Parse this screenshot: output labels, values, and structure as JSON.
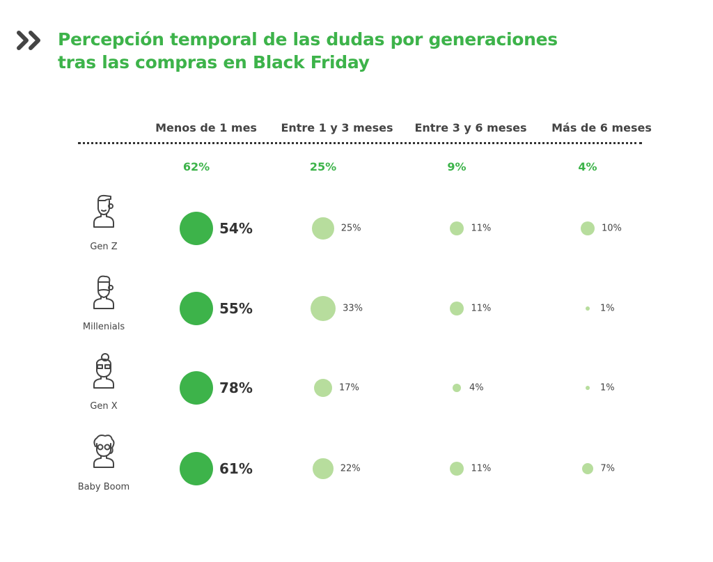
{
  "title_line1": "Percepción temporal de las dudas por generaciones",
  "title_line2": "tras las compras en Black Friday",
  "colors": {
    "primary": "#3db34a",
    "secondary": "#b7dd9d",
    "text": "#444444"
  },
  "chart_data": {
    "type": "bubble-table",
    "title": "Percepción temporal de las dudas por generaciones tras las compras en Black Friday",
    "columns": [
      "Menos de 1 mes",
      "Entre 1 y 3 meses",
      "Entre 3 y 6 meses",
      "Más de 6 meses"
    ],
    "totals": [
      "62%",
      "25%",
      "9%",
      "4%"
    ],
    "rows": [
      {
        "name": "Gen Z",
        "icon": "young-man-icon",
        "values": [
          54,
          25,
          11,
          10
        ],
        "labels": [
          "54%",
          "25%",
          "11%",
          "10%"
        ]
      },
      {
        "name": "Millenials",
        "icon": "bearded-man-icon",
        "values": [
          55,
          33,
          11,
          1
        ],
        "labels": [
          "55%",
          "33%",
          "11%",
          "1%"
        ]
      },
      {
        "name": "Gen X",
        "icon": "woman-glasses-icon",
        "values": [
          78,
          17,
          4,
          1
        ],
        "labels": [
          "78%",
          "17%",
          "4%",
          "1%"
        ]
      },
      {
        "name": "Baby Boom",
        "icon": "elderly-woman-icon",
        "values": [
          61,
          22,
          11,
          7
        ],
        "labels": [
          "61%",
          "22%",
          "11%",
          "7%"
        ]
      }
    ]
  }
}
